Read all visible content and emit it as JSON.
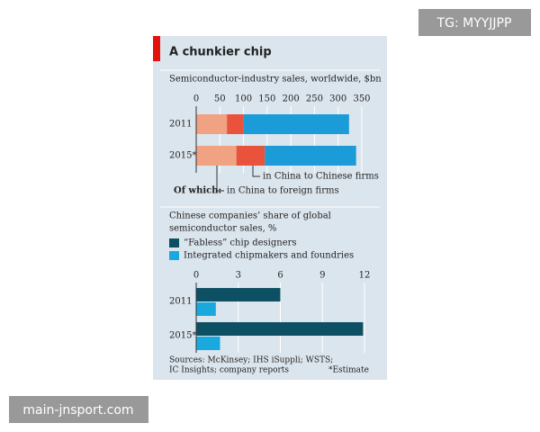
{
  "title": "A chunkier chip",
  "chart_data": [
    {
      "type": "stacked_bar",
      "subtitle": "Semiconductor-industry sales, worldwide, $bn",
      "categories": [
        "2011",
        "2015*"
      ],
      "series": [
        {
          "name": "in China to foreign firms",
          "color": "#f0a282",
          "values": [
            65,
            85
          ]
        },
        {
          "name": "in China to Chinese firms",
          "color": "#e9533c",
          "values": [
            35,
            60
          ]
        },
        {
          "color": "#1b9bd7",
          "values": [
            223,
            193
          ]
        }
      ],
      "annotation": "Of which:",
      "xlim": [
        0,
        350
      ],
      "xticks": [
        0,
        50,
        100,
        150,
        200,
        250,
        300,
        350
      ]
    },
    {
      "type": "grouped_bar",
      "subtitle": [
        "Chinese companies’ share of global",
        "semiconductor sales, %"
      ],
      "categories": [
        "2011",
        "2015*"
      ],
      "series": [
        {
          "name": "“Fabless” chip designers",
          "color": "#0d4f63",
          "values": [
            6.0,
            11.9
          ]
        },
        {
          "name": "Integrated chipmakers and foundries",
          "color": "#1aa9de",
          "values": [
            1.4,
            1.7
          ]
        }
      ],
      "xlim": [
        0,
        12
      ],
      "xticks": [
        0,
        3,
        6,
        9,
        12
      ]
    }
  ],
  "footer": {
    "sources": [
      "Sources: McKinsey; IHS iSuppli; WSTS;",
      "IC Insights; company reports"
    ],
    "note": "*Estimate"
  },
  "watermarks": [
    "TG: MYYJJPP",
    "main-jnsport.com"
  ]
}
